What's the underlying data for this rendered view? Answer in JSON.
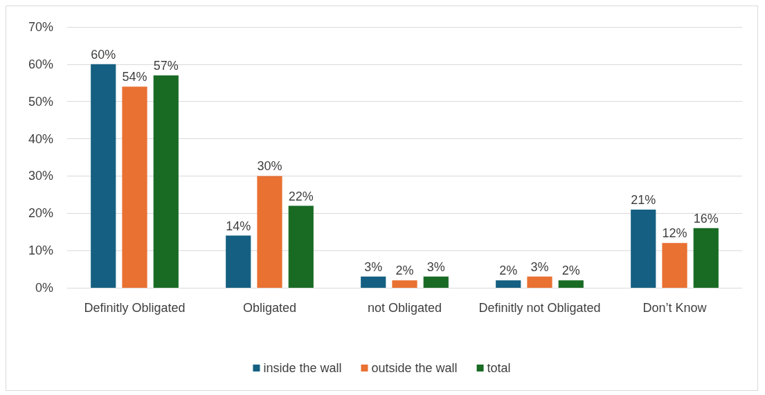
{
  "chart_data": {
    "type": "bar",
    "categories": [
      "Definitly Obligated",
      "Obligated",
      "not Obligated",
      "Definitly not Obligated",
      "Don’t Know"
    ],
    "series": [
      {
        "name": "inside the wall",
        "color": "#156082",
        "values": [
          60,
          14,
          3,
          2,
          21
        ],
        "value_labels": [
          "60%",
          "14%",
          "3%",
          "2%",
          "21%"
        ]
      },
      {
        "name": "outside the wall",
        "color": "#e97132",
        "values": [
          54,
          30,
          2,
          3,
          12
        ],
        "value_labels": [
          "54%",
          "30%",
          "2%",
          "3%",
          "12%"
        ]
      },
      {
        "name": "total",
        "color": "#196b24",
        "values": [
          57,
          22,
          3,
          2,
          16
        ],
        "value_labels": [
          "57%",
          "22%",
          "3%",
          "2%",
          "16%"
        ]
      }
    ],
    "ylim": [
      0,
      70
    ],
    "yticks": [
      {
        "value": 0,
        "label": "0%"
      },
      {
        "value": 10,
        "label": "10%"
      },
      {
        "value": 20,
        "label": "20%"
      },
      {
        "value": 30,
        "label": "30%"
      },
      {
        "value": 40,
        "label": "40%"
      },
      {
        "value": 50,
        "label": "50%"
      },
      {
        "value": 60,
        "label": "60%"
      },
      {
        "value": 70,
        "label": "70%"
      }
    ],
    "grid": "y",
    "legend": "bottom"
  }
}
